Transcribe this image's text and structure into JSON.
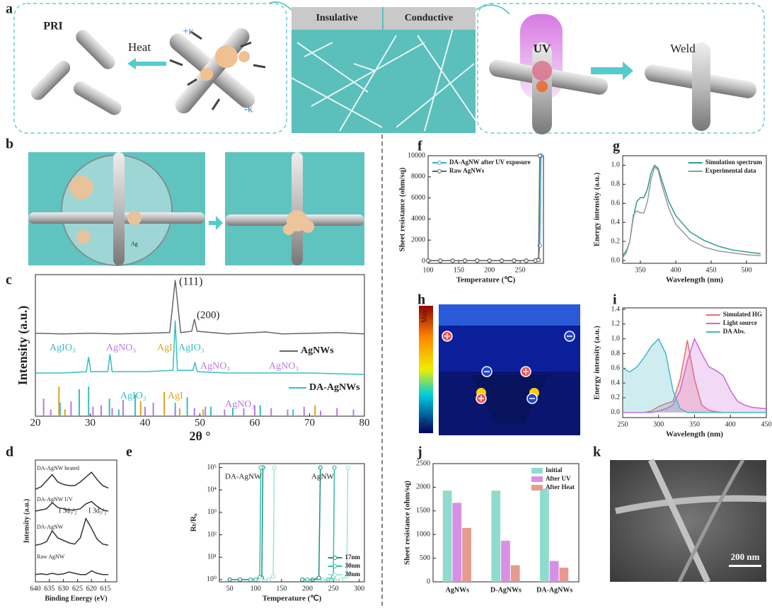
{
  "panel_labels": [
    "a",
    "b",
    "c",
    "d",
    "e",
    "f",
    "g",
    "h",
    "i",
    "j",
    "k"
  ],
  "diagram": {
    "a": {
      "pri": "PRI",
      "heat": "Heat",
      "plus_k": "+κ",
      "minus_k": "-κ",
      "insulative": "Insulative",
      "conductive": "Conductive",
      "uv": "UV",
      "weld": "Weld"
    },
    "b": {
      "ag": "Ag"
    },
    "h": {
      "max": "Max",
      "min": "Min"
    },
    "k": {
      "scale_bar": "200 nm"
    }
  },
  "chart_data": [
    {
      "type": "line",
      "xlabel": "2θ °",
      "ylabel": "Intensity (a.u.)",
      "xlim": [
        20,
        80
      ],
      "ylim": [
        0,
        10.5
      ],
      "xticks": [
        20,
        30,
        40,
        50,
        60,
        70,
        80
      ],
      "series": [
        {
          "name": "AgNWs",
          "color": "#666666",
          "x": [
            20,
            25,
            30,
            35,
            40,
            44.5,
            45.5,
            46.5,
            48.5,
            49,
            49.5,
            55,
            62,
            65,
            70,
            75,
            80
          ],
          "values": [
            6.15,
            6.1,
            6.15,
            6.1,
            6.15,
            6.2,
            10.1,
            6.2,
            6.3,
            7.2,
            6.3,
            6.1,
            6.25,
            6.1,
            6.15,
            6.2,
            6.1
          ]
        },
        {
          "name": "DA-AgNWs",
          "color": "#35bfc0",
          "x": [
            20,
            25,
            29.3,
            29.7,
            30.1,
            33.2,
            33.6,
            34,
            40,
            45.1,
            45.5,
            45.9,
            48.7,
            49.1,
            49.5,
            55,
            62,
            70,
            80
          ],
          "values": [
            3.2,
            3.2,
            3.3,
            4.4,
            3.3,
            3.3,
            4.6,
            3.3,
            3.3,
            3.4,
            7.1,
            3.4,
            3.4,
            4.0,
            3.3,
            3.2,
            3.2,
            3.2,
            3.1
          ]
        }
      ],
      "sticks": [
        {
          "color": "#35bfc0",
          "x": [
            24.5,
            28,
            29.7,
            33.5,
            35.2,
            38.2,
            45.5,
            47.7,
            52,
            56,
            61,
            67
          ],
          "heights": [
            1.0,
            2.0,
            2.2,
            1.3,
            0.5,
            1.6,
            1.0,
            1.4,
            0.7,
            0.6,
            0.8,
            0.5
          ]
        },
        {
          "color": "#e0a020",
          "x": [
            24.3,
            25.4,
            39.2,
            43.5,
            46.3,
            50.6,
            71
          ],
          "heights": [
            2.2,
            0.5,
            1.1,
            1.8,
            0.6,
            0.5,
            0.8
          ]
        },
        {
          "color": "#b57be0",
          "x": [
            21.5,
            22.8,
            26.5,
            30.5,
            32,
            34,
            36,
            40,
            41.5,
            45.5,
            49,
            51,
            54.5,
            58,
            60,
            63,
            66,
            69,
            72,
            75,
            78
          ],
          "heights": [
            1.3,
            0.5,
            1.1,
            0.7,
            0.8,
            0.6,
            1.2,
            0.7,
            1.0,
            0.6,
            0.6,
            0.7,
            0.5,
            0.6,
            0.8,
            0.6,
            0.5,
            0.7,
            0.4,
            0.6,
            0.5
          ]
        }
      ],
      "annotations": [
        "(111)",
        "(200)",
        "AgIO₃",
        "AgNO₃",
        "AgI",
        "AgIO₃",
        "AgNO₃",
        "AgNO₃",
        "AgIO₃",
        "AgI",
        "AgNO₃"
      ]
    },
    {
      "type": "line",
      "xlabel": "Binding Energy (eV)",
      "ylabel": "Intensity (a.u.)",
      "xlim": [
        640,
        611
      ],
      "ylim": [
        0,
        10
      ],
      "xticks": [
        640,
        635,
        630,
        625,
        620,
        615
      ],
      "x": [
        640,
        638,
        636,
        634,
        632,
        630,
        628,
        626,
        624,
        622,
        620,
        618,
        616,
        614
      ],
      "series": [
        {
          "name": "DA-AgNW heated",
          "color": "#333333",
          "values": [
            7.6,
            7.8,
            8.3,
            8.8,
            8.2,
            8.0,
            7.9,
            7.9,
            8.2,
            8.6,
            9.0,
            8.4,
            7.9,
            7.7
          ]
        },
        {
          "name": "DA-AgNW UV",
          "color": "#333333",
          "values": [
            5.8,
            5.9,
            6.0,
            6.5,
            6.1,
            6.0,
            5.9,
            5.9,
            6.0,
            6.4,
            6.6,
            6.2,
            5.9,
            5.8
          ]
        },
        {
          "name": "DA-AgNW",
          "color": "#333333",
          "values": [
            3.0,
            3.1,
            3.3,
            4.2,
            3.6,
            3.4,
            3.2,
            3.1,
            3.6,
            5.2,
            4.4,
            3.5,
            3.1,
            3.0
          ]
        },
        {
          "name": "Raw AgNW",
          "color": "#333333",
          "values": [
            0.6,
            0.65,
            0.6,
            0.7,
            0.6,
            0.65,
            0.8,
            0.7,
            0.6,
            0.6,
            0.9,
            0.7,
            0.6,
            0.6
          ]
        }
      ],
      "annotations": [
        "I 3d₃/₂",
        "I 3d₅/₂"
      ]
    },
    {
      "type": "line",
      "xlabel": "Temperature (℃)",
      "ylabel": "Rₜ/R₀",
      "xlim": [
        30,
        310
      ],
      "ylim": [
        0.8,
        150000
      ],
      "log_y": true,
      "markers": true,
      "legend": "lower right",
      "xticks": [
        50,
        100,
        150,
        200,
        250,
        300
      ],
      "yticks": [
        {
          "value": 1,
          "label": "10⁰"
        },
        {
          "value": 10,
          "label": "10¹"
        },
        {
          "value": 100,
          "label": "10²"
        },
        {
          "value": 1000,
          "label": "10³"
        },
        {
          "value": 10000,
          "label": "10⁴"
        },
        {
          "value": 100000,
          "label": "10⁵"
        }
      ],
      "series": [
        {
          "name": "17nm",
          "color": "#1f8f80",
          "x": [
            50,
            70,
            90,
            112,
            114,
            null,
            190,
            210,
            222,
            225
          ],
          "values": [
            1,
            1,
            1,
            1.2,
            100000,
            null,
            1,
            1,
            1.2,
            100000
          ]
        },
        {
          "name": "30nm",
          "color": "#33bfa8",
          "x": [
            90,
            100,
            108,
            110,
            null,
            200,
            240,
            250,
            252
          ],
          "values": [
            1,
            1,
            1.3,
            100000,
            null,
            1,
            1,
            1.3,
            100000
          ]
        },
        {
          "name": "30nm",
          "color": "#9fe4d6",
          "x": [
            110,
            125,
            134,
            136,
            null,
            230,
            265,
            276,
            278
          ],
          "values": [
            1,
            1,
            1.4,
            100000,
            null,
            1,
            1,
            1.4,
            100000
          ]
        }
      ],
      "annotations": [
        "DA-AgNW",
        "AgNW"
      ]
    },
    {
      "type": "line",
      "xlabel": "Temperature (℃)",
      "ylabel": "Sheet resistance (ohm/sq)",
      "xlim": [
        100,
        288
      ],
      "ylim": [
        -200,
        10000
      ],
      "markers": true,
      "legend": "upper left",
      "xticks": [
        100,
        150,
        200,
        250
      ],
      "yticks": [
        0,
        2000,
        4000,
        6000,
        8000,
        10000
      ],
      "x": [
        100,
        120,
        140,
        160,
        180,
        200,
        220,
        240,
        260,
        275,
        280,
        282,
        284
      ],
      "series": [
        {
          "name": "DA-AgNW after UV exposure",
          "color": "#3aa9d6",
          "values": [
            60,
            60,
            60,
            60,
            60,
            60,
            60,
            60,
            60,
            70,
            150,
            1500,
            10000
          ]
        },
        {
          "name": "Raw AgNWs",
          "color": "#666666",
          "values": [
            50,
            50,
            50,
            50,
            50,
            50,
            50,
            50,
            50,
            60,
            120,
            10000,
            null
          ]
        }
      ]
    },
    {
      "type": "line",
      "xlabel": "Wavelength (nm)",
      "ylabel": "Energy intensity (a.u.)",
      "xlim": [
        325,
        528
      ],
      "ylim": [
        -0.03,
        1.1
      ],
      "legend": "upper right",
      "xticks": [
        350,
        400,
        450,
        500
      ],
      "yticks": [
        {
          "value": 0,
          "label": "0.0"
        },
        0.2,
        0.4,
        0.6,
        0.8,
        {
          "value": 1,
          "label": "1.0"
        }
      ],
      "x": [
        325,
        330,
        335,
        340,
        345,
        350,
        355,
        360,
        365,
        370,
        375,
        380,
        390,
        400,
        420,
        440,
        460,
        480,
        500,
        520
      ],
      "series": [
        {
          "name": "Simulation spectrum",
          "color": "#2a9d8f",
          "values": [
            0.05,
            0.1,
            0.2,
            0.45,
            0.62,
            0.66,
            0.66,
            0.75,
            0.92,
            1.0,
            0.97,
            0.85,
            0.62,
            0.47,
            0.3,
            0.21,
            0.15,
            0.11,
            0.09,
            0.07
          ]
        },
        {
          "name": "Experimental data",
          "color": "#999999",
          "values": [
            0.03,
            0.08,
            0.2,
            0.48,
            0.52,
            0.5,
            0.5,
            0.62,
            0.85,
            0.98,
            0.95,
            0.8,
            0.55,
            0.38,
            0.22,
            0.14,
            0.1,
            0.08,
            0.06,
            0.05
          ]
        }
      ]
    },
    {
      "type": "area",
      "xlabel": "Wavelength (nm)",
      "ylabel": "Energy intensity (a.u.)",
      "xlim": [
        250,
        450
      ],
      "ylim": [
        -0.07,
        1.42
      ],
      "legend": "upper right",
      "xticks": [
        250,
        300,
        350,
        400,
        450
      ],
      "yticks": [
        {
          "value": 0,
          "label": "0.0"
        },
        0.2,
        0.4,
        0.6,
        0.8,
        {
          "value": 1,
          "label": "1.0"
        },
        1.2,
        1.4
      ],
      "x": [
        250,
        260,
        270,
        280,
        290,
        300,
        310,
        320,
        330,
        340,
        350,
        360,
        370,
        380,
        390,
        400,
        410,
        420,
        430,
        440,
        450
      ],
      "series": [
        {
          "name": "Simulated HG",
          "color": "#e07070",
          "values": [
            0,
            0,
            0,
            0,
            0.02,
            0.08,
            0.12,
            0.15,
            0.45,
            0.98,
            0.45,
            0.1,
            0.03,
            0.01,
            0,
            0,
            0,
            0,
            0,
            0,
            0
          ]
        },
        {
          "name": "Light source",
          "color": "#cc66dd",
          "values": [
            0,
            0,
            0,
            0,
            0,
            0.02,
            0.05,
            0.1,
            0.3,
            0.7,
            1.0,
            0.8,
            0.62,
            0.57,
            0.5,
            0.3,
            0.15,
            0.1,
            0.07,
            0.06,
            0.05
          ]
        },
        {
          "name": "DA Abs.",
          "color": "#40b8c8",
          "values": [
            0.6,
            0.55,
            0.62,
            0.75,
            0.9,
            1.0,
            0.8,
            0.3,
            0.05,
            0,
            0,
            0,
            0,
            0,
            0,
            0,
            0,
            0,
            0,
            0,
            0
          ]
        }
      ]
    },
    {
      "type": "bar",
      "ylabel": "Sheet resistance (ohm/sq)",
      "ylim": [
        0,
        2500
      ],
      "yticks": [
        0,
        500,
        1000,
        1500,
        2000,
        2500
      ],
      "legend": "upper right",
      "categories": [
        "AgNWs",
        "D-AgNWs",
        "DA-AgNWs"
      ],
      "series": [
        {
          "name": "Initial",
          "color": "#8fdccf",
          "values": [
            1930,
            1930,
            1970
          ]
        },
        {
          "name": "After UV",
          "color": "#d890e6",
          "values": [
            1670,
            870,
            440
          ]
        },
        {
          "name": "After Heat",
          "color": "#e59b90",
          "values": [
            1140,
            350,
            300
          ]
        }
      ]
    }
  ]
}
